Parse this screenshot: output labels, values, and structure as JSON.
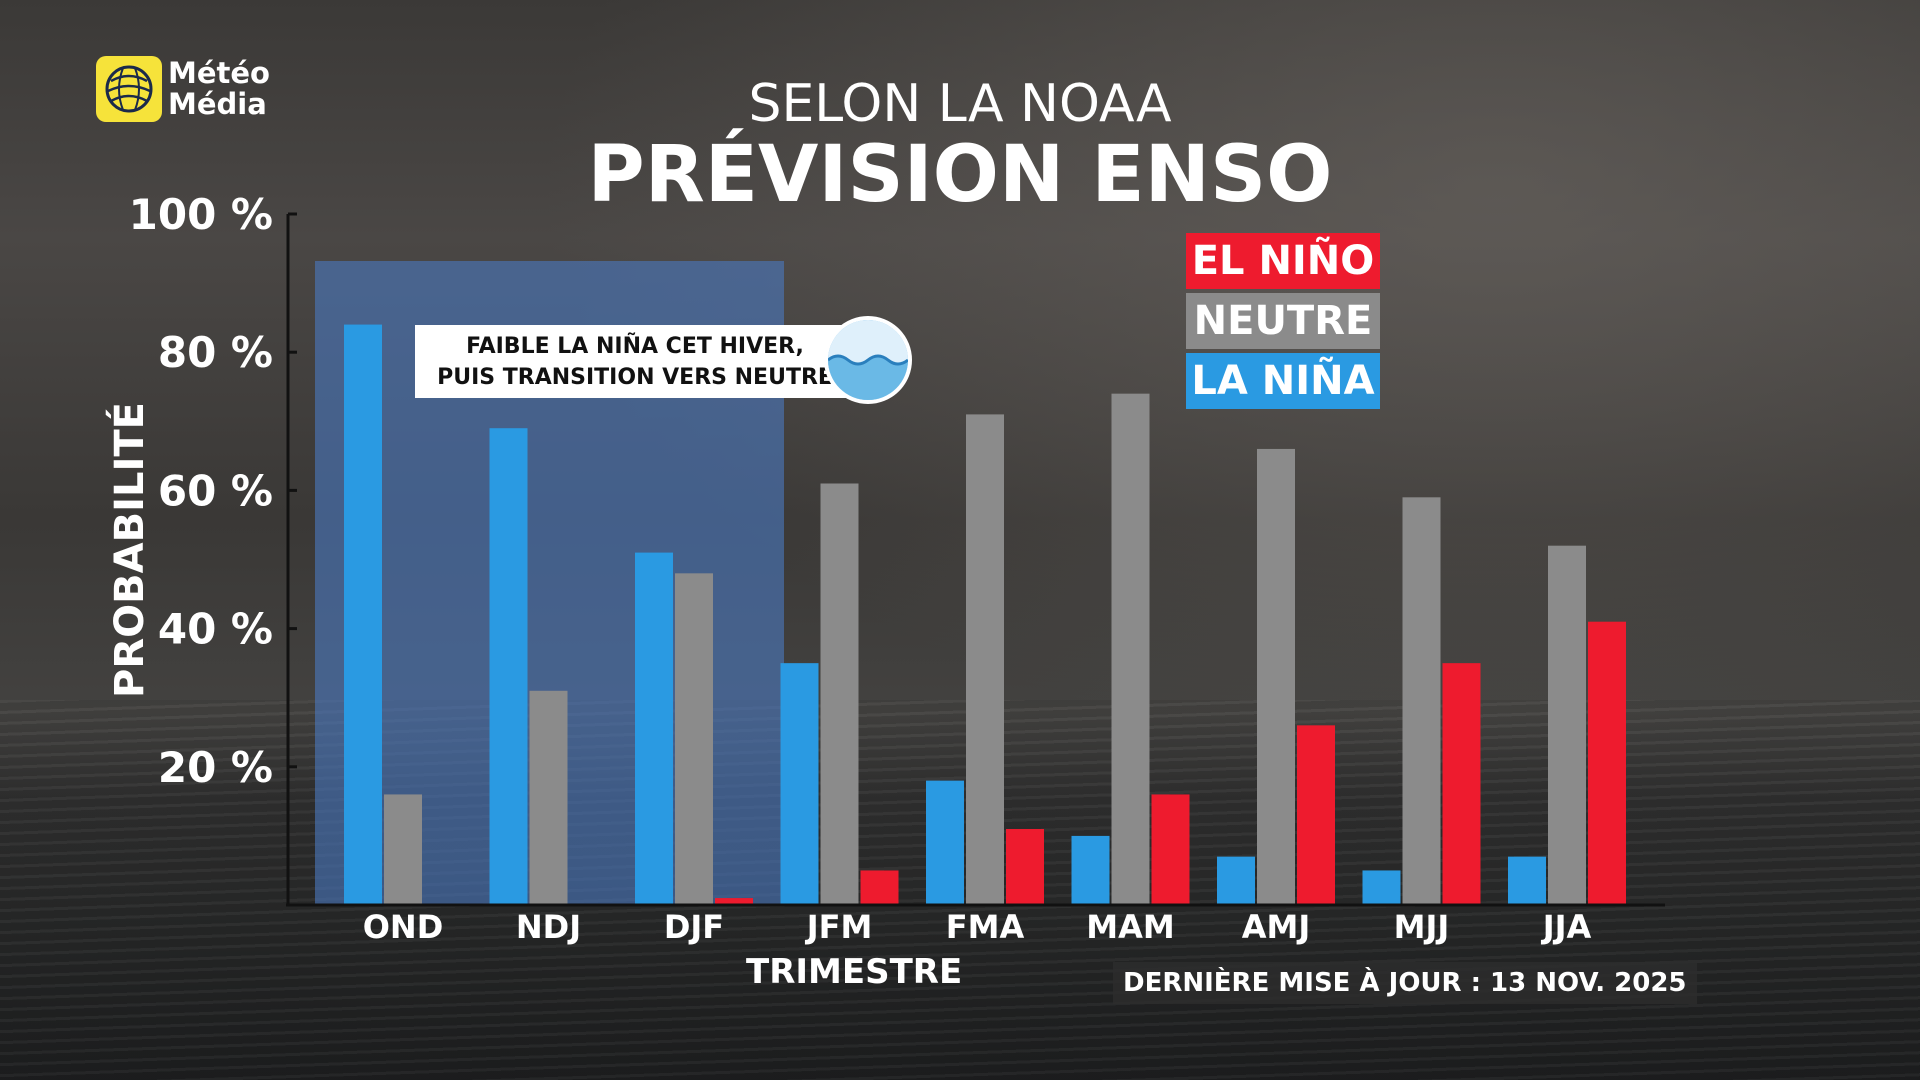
{
  "brand": {
    "logo_line1": "Météo",
    "logo_line2": "Média",
    "logo_icon": "globe-icon"
  },
  "header": {
    "subtitle": "SELON LA NOAA",
    "title": "PRÉVISION ENSO"
  },
  "callout": {
    "line1": "FAIBLE LA NIÑA CET HIVER,",
    "line2": "PUIS TRANSITION VERS NEUTRE",
    "icon": "water-wave-icon"
  },
  "footer": {
    "updated": "DERNIÈRE MISE À JOUR : 13 NOV. 2025"
  },
  "colors": {
    "el_nino": "#ee1b2e",
    "neutre": "#8b8b8b",
    "la_nina": "#2a9ae2",
    "highlight": "#4a78bd"
  },
  "chart_data": {
    "type": "bar",
    "ylabel": "PROBABILITÉ",
    "xlabel": "TRIMESTRE",
    "ylim": [
      0,
      100
    ],
    "yticks": [
      20,
      40,
      60,
      80,
      100
    ],
    "ytick_labels": [
      "20 %",
      "40 %",
      "60 %",
      "80 %",
      "100 %"
    ],
    "categories": [
      "OND",
      "NDJ",
      "DJF",
      "JFM",
      "FMA",
      "MAM",
      "AMJ",
      "MJJ",
      "JJA"
    ],
    "highlighted_categories": [
      "OND",
      "NDJ",
      "DJF"
    ],
    "legend_position": "top-right",
    "series": [
      {
        "name": "LA NIÑA",
        "color": "#2a9ae2",
        "values": [
          84,
          69,
          51,
          35,
          18,
          10,
          7,
          5,
          7
        ]
      },
      {
        "name": "NEUTRE",
        "color": "#8b8b8b",
        "values": [
          16,
          31,
          48,
          61,
          71,
          74,
          66,
          59,
          52
        ]
      },
      {
        "name": "EL NIÑO",
        "color": "#ee1b2e",
        "values": [
          0,
          0,
          1,
          5,
          11,
          16,
          26,
          35,
          41
        ]
      }
    ],
    "legend_order": [
      "EL NIÑO",
      "NEUTRE",
      "LA NIÑA"
    ]
  }
}
